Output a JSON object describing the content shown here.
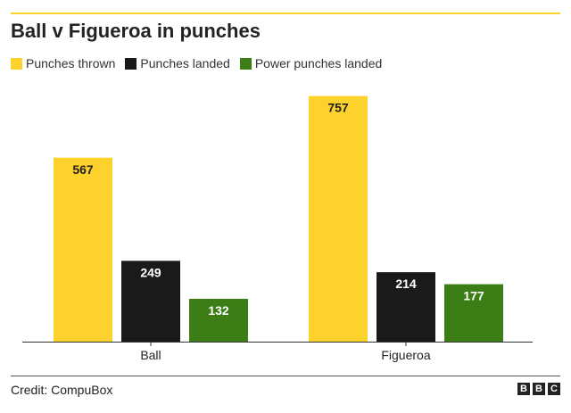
{
  "chart_data": {
    "type": "bar",
    "title": "Ball v Figueroa in punches",
    "categories": [
      "Ball",
      "Figueroa"
    ],
    "series": [
      {
        "name": "Punches thrown",
        "color": "#FDD22C",
        "values": [
          567,
          757
        ]
      },
      {
        "name": "Punches landed",
        "color": "#1A1A1A",
        "values": [
          249,
          214
        ]
      },
      {
        "name": "Power punches landed",
        "color": "#3C7D16",
        "values": [
          132,
          177
        ]
      }
    ],
    "ylim": [
      0,
      800
    ],
    "grid": false,
    "legend": "top-left",
    "data_labels": true
  },
  "footer": {
    "credit": "Credit: CompuBox",
    "logo_letters": [
      "B",
      "B",
      "C"
    ]
  }
}
